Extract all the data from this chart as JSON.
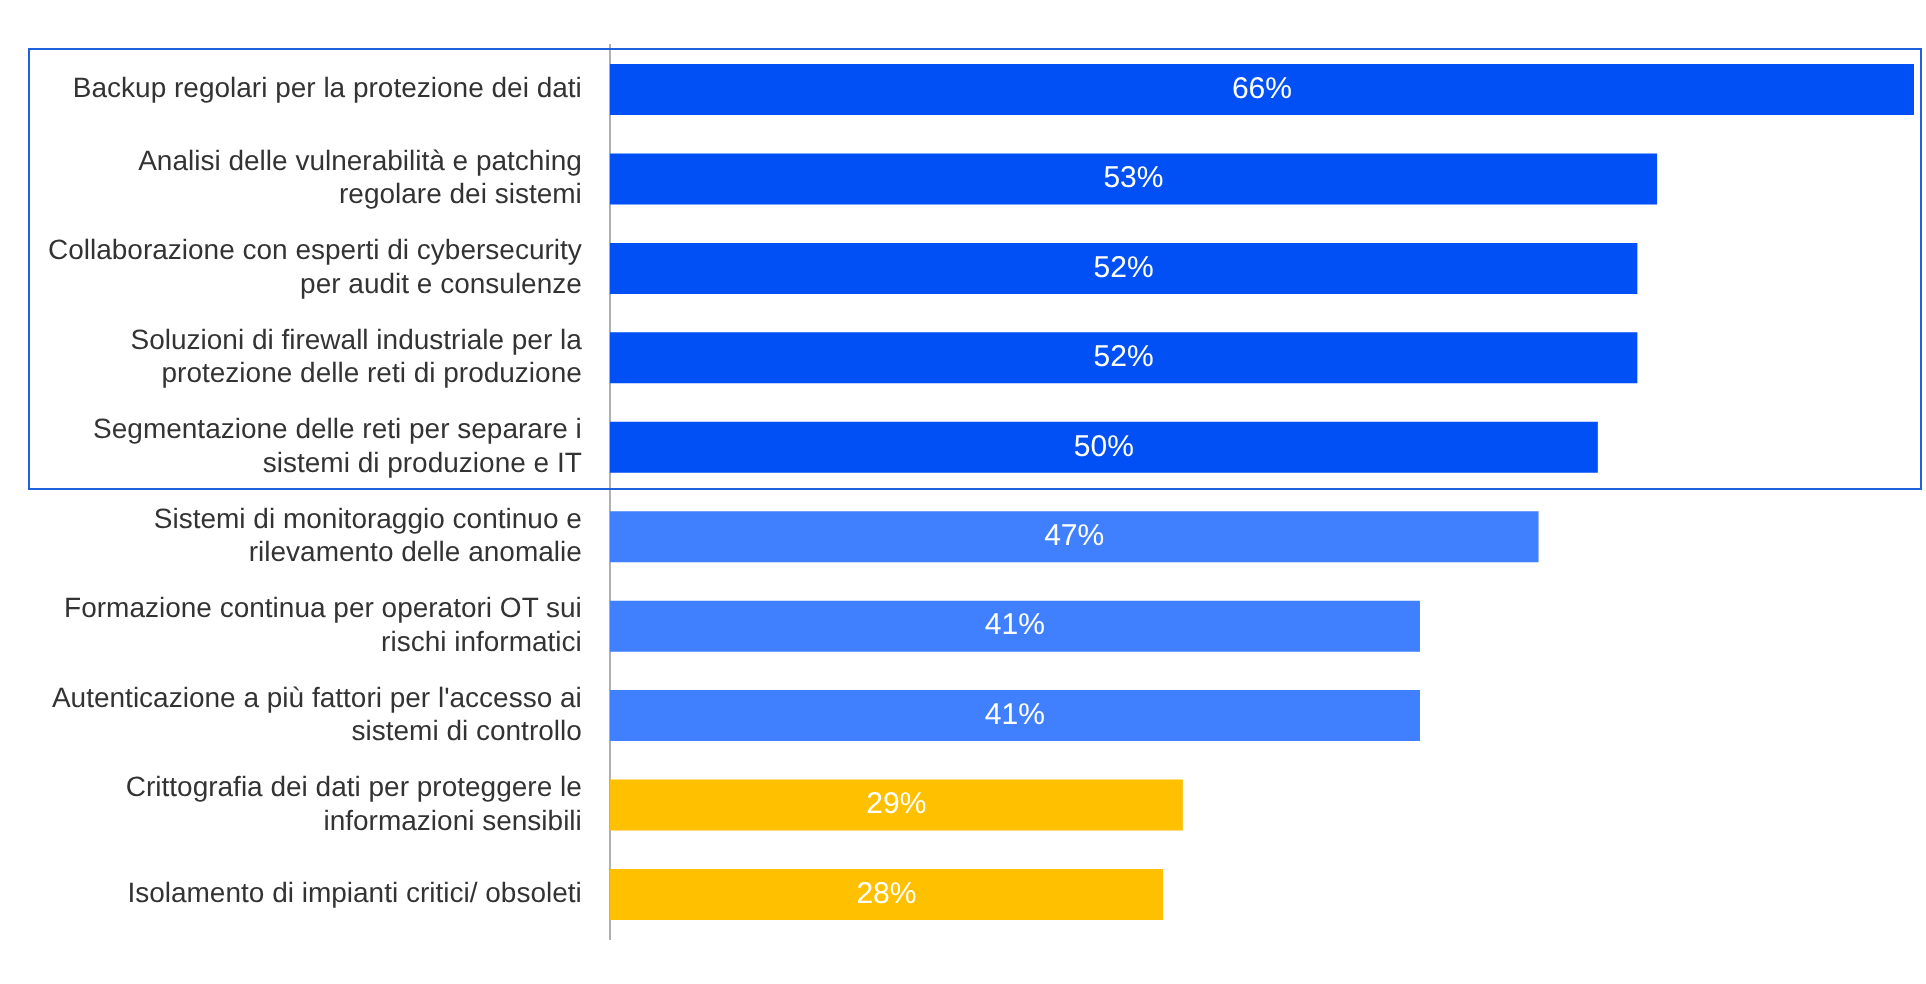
{
  "chart_data": {
    "type": "bar",
    "orientation": "horizontal",
    "categories": [
      "Backup regolari per la protezione dei dati",
      "Analisi delle vulnerabilità e patching regolare dei sistemi",
      "Collaborazione con esperti di cybersecurity per audit e consulenze",
      "Soluzioni di firewall industriale per la protezione delle reti di produzione",
      "Segmentazione delle reti per separare i sistemi di produzione e IT",
      "Sistemi di monitoraggio continuo e rilevamento delle anomalie",
      "Formazione continua per operatori OT sui rischi informatici",
      "Autenticazione a più fattori per l'accesso ai sistemi di controllo",
      "Crittografia dei dati per proteggere le informazioni sensibili",
      "Isolamento di impianti critici/ obsoleti"
    ],
    "values": [
      66,
      53,
      52,
      52,
      50,
      47,
      41,
      41,
      29,
      28
    ],
    "value_labels": [
      "66%",
      "53%",
      "52%",
      "52%",
      "50%",
      "47%",
      "41%",
      "41%",
      "29%",
      "28%"
    ],
    "colors": [
      "#0050f5",
      "#0050f5",
      "#0050f5",
      "#0050f5",
      "#0050f5",
      "#4080ff",
      "#4080ff",
      "#4080ff",
      "#ffc000",
      "#ffc000"
    ],
    "legend": false
  }
}
